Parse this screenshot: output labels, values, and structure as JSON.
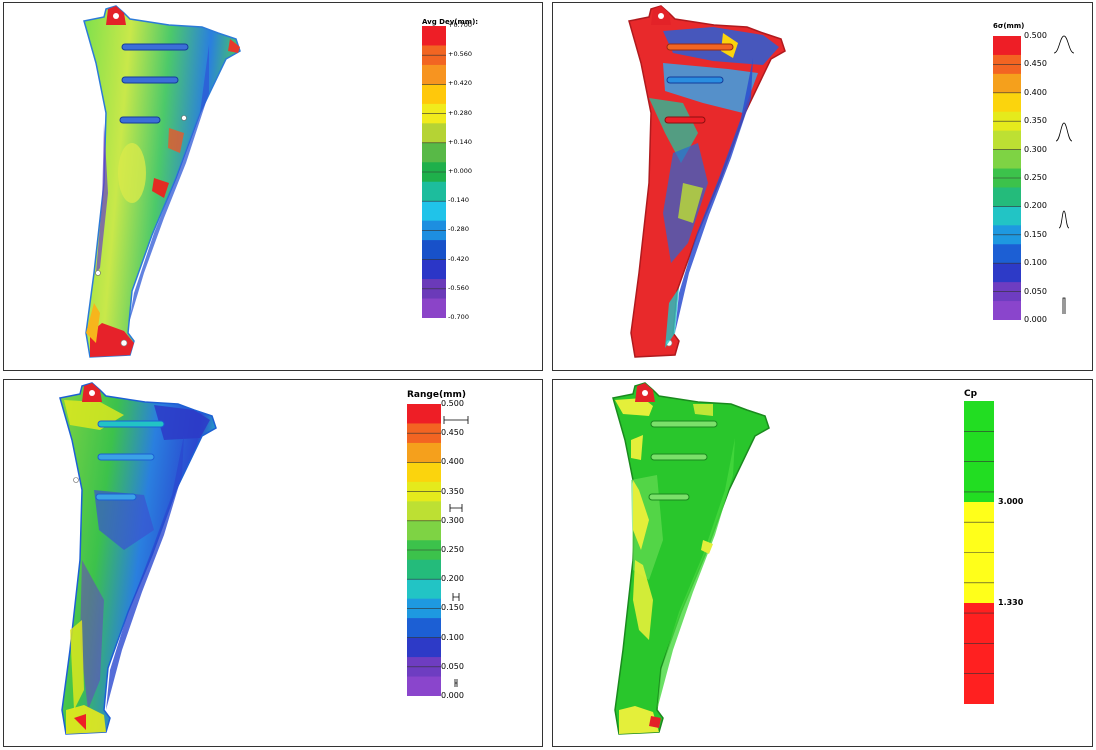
{
  "panels": [
    {
      "id": "p1",
      "legend_title": "Avg Dev(mm):",
      "palette": [
        "#ee1e26",
        "#f26522",
        "#f79420",
        "#ffc80b",
        "#f1eb1c",
        "#b5d334",
        "#58b947",
        "#1fb04b",
        "#1dbd9d",
        "#20c3e9",
        "#1d8ee0",
        "#1851c9",
        "#2b36c7",
        "#6b3ab9",
        "#8b44c8"
      ],
      "ticks": [
        "+0.700",
        "+0.560",
        "+0.420",
        "+0.280",
        "+0.140",
        "+0.000",
        "-0.140",
        "-0.280",
        "-0.420",
        "-0.560",
        "-0.700"
      ]
    },
    {
      "id": "p2",
      "legend_title": "6σ(mm)",
      "palette": [
        "#ee1e26",
        "#f36422",
        "#f5a01c",
        "#fbd40d",
        "#e5ea1c",
        "#bde033",
        "#7ed344",
        "#3cc24b",
        "#24bb7b",
        "#22c4c5",
        "#1e99e0",
        "#1c5fd4",
        "#2d3ac7",
        "#6e3dc1",
        "#8a45cc"
      ],
      "ticks": [
        "0.500",
        "0.450",
        "0.400",
        "0.350",
        "0.300",
        "0.250",
        "0.200",
        "0.150",
        "0.100",
        "0.050",
        "0.000"
      ]
    },
    {
      "id": "p3",
      "legend_title": "Range(mm)",
      "palette": [
        "#ee1e26",
        "#f36422",
        "#f5a01c",
        "#fbd40d",
        "#e5ea1c",
        "#bde033",
        "#7ed344",
        "#3cc24b",
        "#24bb7b",
        "#22c4c5",
        "#1e99e0",
        "#1c5fd4",
        "#2d3ac7",
        "#6e3dc1",
        "#8a45cc"
      ],
      "ticks": [
        "0.500",
        "0.450",
        "0.400",
        "0.350",
        "0.300",
        "0.250",
        "0.200",
        "0.150",
        "0.100",
        "0.050",
        "0.000"
      ]
    },
    {
      "id": "p4",
      "legend_title": "Cp",
      "palette": [
        "#22dd22",
        "#ffff1a",
        "#ff2020"
      ],
      "ticks": [
        "3.000",
        "1.330"
      ]
    }
  ]
}
